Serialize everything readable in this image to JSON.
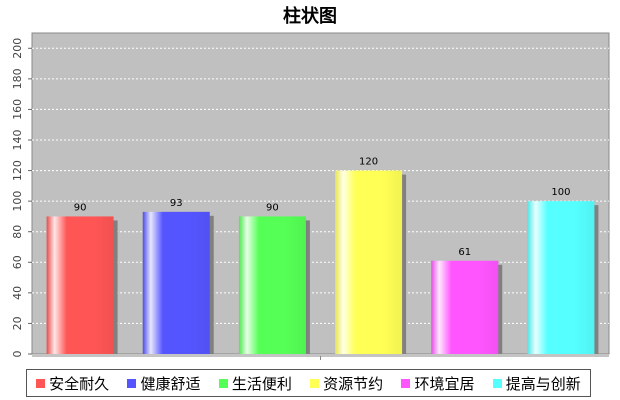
{
  "chart_data": {
    "type": "bar",
    "title": "柱状图",
    "categories": [
      "安全耐久",
      "健康舒适",
      "生活便利",
      "资源节约",
      "环境宜居",
      "提高与创新"
    ],
    "values": [
      90,
      93,
      90,
      120,
      61,
      100
    ],
    "colors": [
      "#ff5555",
      "#5555ff",
      "#55ff55",
      "#ffff55",
      "#ff55ff",
      "#55ffff"
    ],
    "ylim": [
      0,
      210
    ],
    "yticks": [
      0,
      20,
      40,
      60,
      80,
      100,
      120,
      140,
      160,
      180,
      200
    ],
    "xlabel": "",
    "ylabel": "",
    "grid": true,
    "legend_position": "bottom",
    "plot_background": "#c0c0c0"
  }
}
